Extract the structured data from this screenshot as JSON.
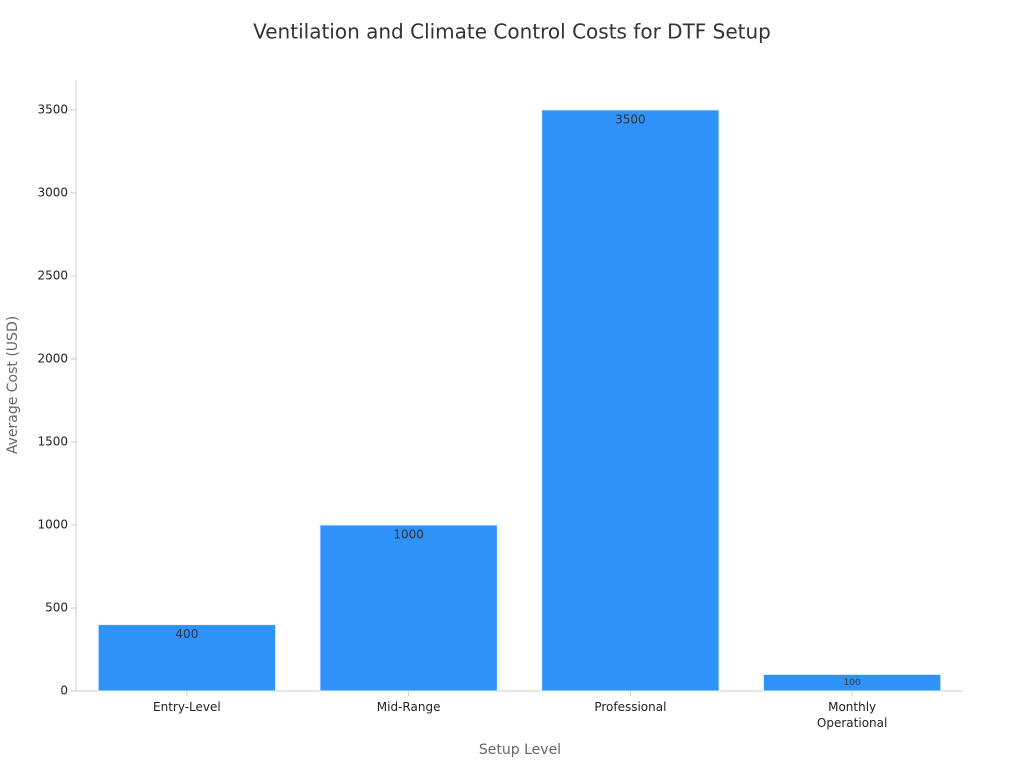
{
  "chart_data": {
    "type": "bar",
    "title": "Ventilation and Climate Control Costs for DTF Setup",
    "x_label": "Setup Level",
    "y_label": "Average Cost (USD)",
    "categories": [
      "Entry-Level",
      "Mid-Range",
      "Professional",
      "Monthly Operational"
    ],
    "values": [
      400,
      1000,
      3500,
      100
    ],
    "color": "#2f92f9",
    "ylim": [
      0,
      3680
    ],
    "yticks": [
      0,
      500,
      1000,
      1500,
      2000,
      2500,
      3000,
      3500
    ],
    "grid": false
  }
}
